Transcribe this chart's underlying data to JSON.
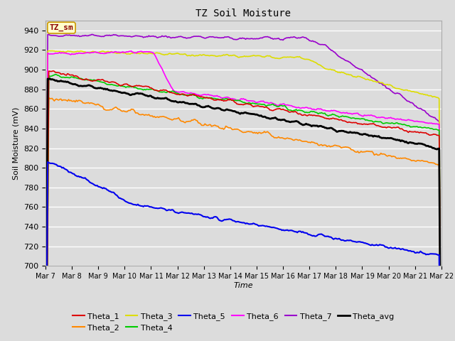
{
  "title": "TZ Soil Moisture",
  "xlabel": "Time",
  "ylabel": "Soil Moisture (mV)",
  "ylim": [
    700,
    950
  ],
  "xlim": [
    0,
    360
  ],
  "bg_color": "#dcdcdc",
  "plot_bg_color": "#dcdcdc",
  "legend_label": "TZ_sm",
  "series": {
    "Theta_1": {
      "color": "#dd0000",
      "lw": 1.2
    },
    "Theta_2": {
      "color": "#ff8800",
      "lw": 1.2
    },
    "Theta_3": {
      "color": "#dddd00",
      "lw": 1.2
    },
    "Theta_4": {
      "color": "#00cc00",
      "lw": 1.2
    },
    "Theta_5": {
      "color": "#0000ee",
      "lw": 1.5
    },
    "Theta_6": {
      "color": "#ff00ff",
      "lw": 1.2
    },
    "Theta_7": {
      "color": "#9900cc",
      "lw": 1.2
    },
    "Theta_avg": {
      "color": "#000000",
      "lw": 2.0
    }
  },
  "xtick_labels": [
    "Mar 7",
    "Mar 8",
    "Mar 9",
    "Mar 10",
    "Mar 11",
    "Mar 12",
    "Mar 13",
    "Mar 14",
    "Mar 15",
    "Mar 16",
    "Mar 17",
    "Mar 18",
    "Mar 19",
    "Mar 20",
    "Mar 21",
    "Mar 22"
  ],
  "xtick_positions": [
    0,
    24,
    48,
    72,
    96,
    120,
    144,
    168,
    192,
    216,
    240,
    264,
    288,
    312,
    336,
    360
  ]
}
